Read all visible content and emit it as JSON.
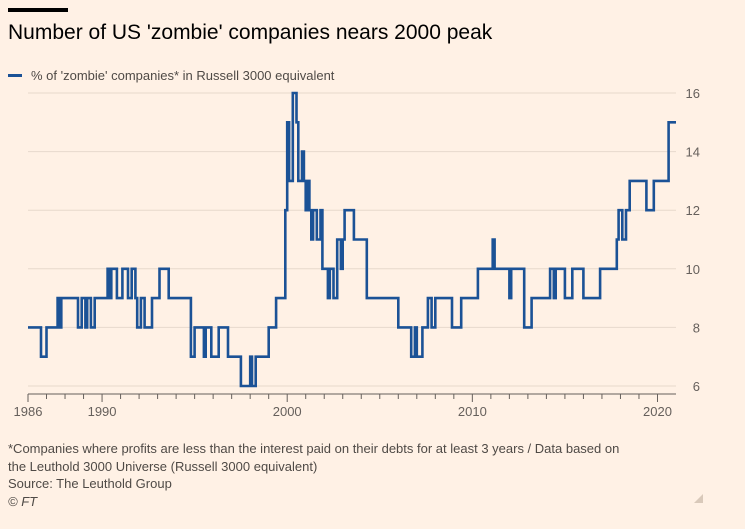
{
  "header": {
    "title": "Number of US 'zombie' companies nears 2000 peak"
  },
  "legend": {
    "label": "% of 'zombie' companies* in Russell 3000 equivalent",
    "color": "#1b5296"
  },
  "footer": {
    "note_line1": "*Companies where profits are less than the interest paid on their debts for at least 3 years / Data based on",
    "note_line2": "the Leuthold 3000 Universe (Russell 3000 equivalent)",
    "source": "Source: The Leuthold Group",
    "copyright": "© FT"
  },
  "chart_data": {
    "type": "line",
    "title": "Number of US 'zombie' companies nears 2000 peak",
    "xlabel": "",
    "ylabel": "",
    "xlim": [
      1986,
      2021
    ],
    "ylim": [
      6,
      16
    ],
    "x_ticks": [
      1986,
      1990,
      2000,
      2010,
      2020
    ],
    "y_ticks": [
      6,
      8,
      10,
      12,
      14,
      16
    ],
    "grid": true,
    "legend_position": "top-left",
    "y_axis_position": "right",
    "series": [
      {
        "name": "% of 'zombie' companies* in Russell 3000 equivalent",
        "color": "#1b5296",
        "step": true,
        "x": [
          1986.0,
          1986.7,
          1987.0,
          1987.3,
          1987.6,
          1987.7,
          1987.8,
          1988.0,
          1988.2,
          1988.5,
          1988.7,
          1988.9,
          1989.1,
          1989.2,
          1989.4,
          1989.6,
          1989.9,
          1990.1,
          1990.3,
          1990.4,
          1990.5,
          1990.8,
          1990.9,
          1991.1,
          1991.4,
          1991.6,
          1991.8,
          1991.9,
          1992.1,
          1992.3,
          1992.7,
          1992.8,
          1993.1,
          1993.6,
          1993.8,
          1994.0,
          1994.6,
          1994.8,
          1995.0,
          1995.5,
          1995.6,
          1995.9,
          1996.3,
          1996.5,
          1996.8,
          1997.0,
          1997.5,
          1998.0,
          1998.1,
          1998.3,
          1998.5,
          1999.0,
          1999.4,
          1999.9,
          2000.0,
          2000.1,
          2000.3,
          2000.5,
          2000.6,
          2000.8,
          2000.9,
          2001.0,
          2001.1,
          2001.2,
          2001.3,
          2001.4,
          2001.6,
          2001.8,
          2001.9,
          2002.2,
          2002.3,
          2002.5,
          2002.7,
          2002.9,
          2003.0,
          2003.1,
          2003.3,
          2003.4,
          2003.6,
          2004.3,
          2004.5,
          2005.0,
          2006.0,
          2006.7,
          2006.9,
          2007.0,
          2007.3,
          2007.6,
          2007.8,
          2008.0,
          2008.9,
          2009.0,
          2009.4,
          2010.3,
          2010.6,
          2011.1,
          2011.2,
          2011.5,
          2012.0,
          2012.1,
          2012.5,
          2012.8,
          2013.0,
          2013.2,
          2013.6,
          2013.9,
          2014.2,
          2014.4,
          2014.5,
          2014.6,
          2014.9,
          2015.0,
          2015.4,
          2015.6,
          2016.0,
          2016.9,
          2017.4,
          2017.6,
          2017.8,
          2017.9,
          2018.1,
          2018.3,
          2018.5,
          2019.2,
          2019.4,
          2019.8,
          2020.6,
          2020.8
        ],
        "values": [
          8,
          7,
          8,
          8,
          9,
          8,
          9,
          9,
          9,
          9,
          8,
          9,
          8,
          9,
          8,
          9,
          9,
          9,
          10,
          9,
          10,
          9,
          9,
          10,
          9,
          10,
          9,
          8,
          9,
          8,
          9,
          9,
          10,
          9,
          9,
          9,
          9,
          7,
          8,
          7,
          8,
          7,
          8,
          8,
          7,
          7,
          6,
          7,
          6,
          7,
          7,
          8,
          9,
          12,
          15,
          13,
          16,
          15,
          13,
          14,
          13,
          12,
          13,
          12,
          11,
          12,
          11,
          12,
          10,
          9,
          10,
          9,
          11,
          10,
          11,
          12,
          12,
          12,
          11,
          9,
          9,
          9,
          8,
          7,
          8,
          7,
          8,
          9,
          8,
          9,
          8,
          8,
          9,
          10,
          10,
          11,
          10,
          10,
          9,
          10,
          10,
          8,
          8,
          9,
          9,
          9,
          10,
          9,
          10,
          10,
          10,
          9,
          10,
          10,
          9,
          10,
          10,
          10,
          11,
          12,
          11,
          12,
          13,
          13,
          12,
          13,
          15,
          15
        ]
      }
    ]
  }
}
